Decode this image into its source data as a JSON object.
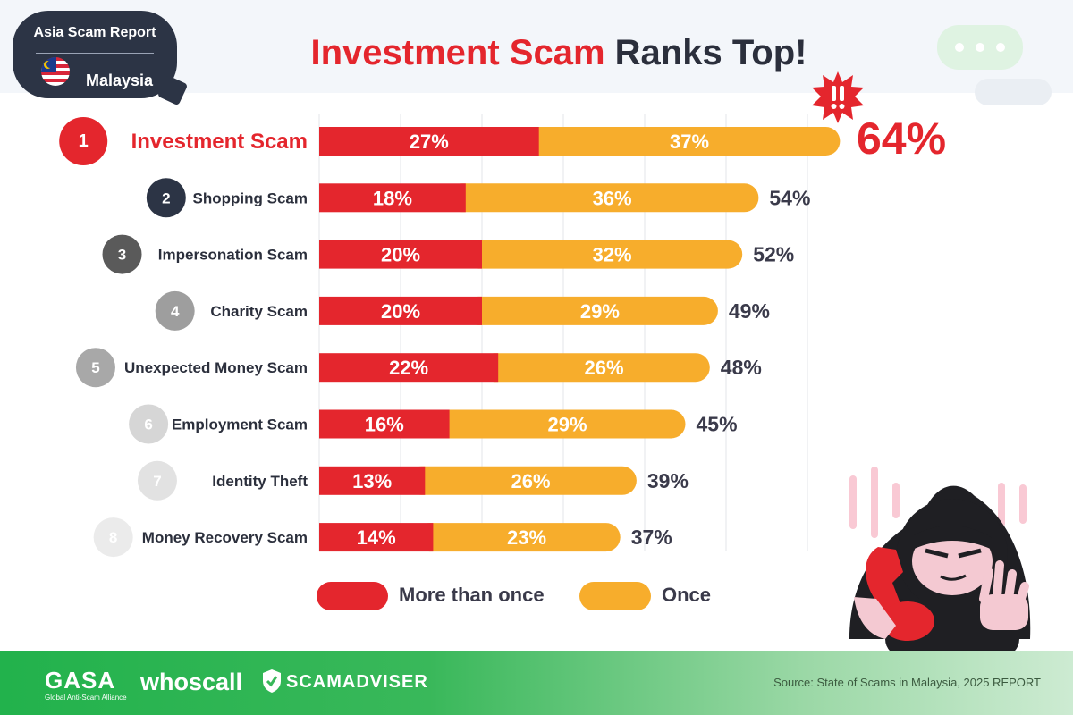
{
  "badge": {
    "title": "Asia Scam Report",
    "country": "Malaysia"
  },
  "headline": {
    "part1": "Investment Scam",
    "part2": "Ranks Top!"
  },
  "highlight": {
    "total": "64%"
  },
  "colors": {
    "more_than_once": "#e4262d",
    "once": "#f7ad2c",
    "dark": "#2c3445",
    "text": "#3a3a4a"
  },
  "chart_data": {
    "type": "bar",
    "orientation": "horizontal",
    "stacked": true,
    "categories": [
      "Investment Scam",
      "Shopping Scam",
      "Impersonation Scam",
      "Charity Scam",
      "Unexpected Money Scam",
      "Employment Scam",
      "Identity Theft",
      "Money Recovery Scam"
    ],
    "ranks": [
      "1",
      "2",
      "3",
      "4",
      "5",
      "6",
      "7",
      "8"
    ],
    "rank_colors": [
      "#e4262d",
      "#2c3445",
      "#5a5a5a",
      "#9e9e9e",
      "#a8a8a8",
      "#d6d6d6",
      "#e2e2e2",
      "#ebebeb"
    ],
    "series": [
      {
        "name": "More than once",
        "color": "#e4262d",
        "values": [
          27,
          18,
          20,
          20,
          22,
          16,
          13,
          14
        ]
      },
      {
        "name": "Once",
        "color": "#f7ad2c",
        "values": [
          37,
          36,
          32,
          29,
          26,
          29,
          26,
          23
        ]
      }
    ],
    "totals": [
      "64%",
      "54%",
      "52%",
      "49%",
      "48%",
      "45%",
      "39%",
      "37%"
    ],
    "grid": true,
    "legend_position": "bottom"
  },
  "footer": {
    "logo_gasa": "GASA",
    "logo_gasa_sub": "Global Anti-Scam Alliance",
    "logo_whoscall": "whoscall",
    "logo_scamadviser": "SCAMADVISER",
    "source": "Source: State of Scams in Malaysia, 2025 REPORT"
  }
}
